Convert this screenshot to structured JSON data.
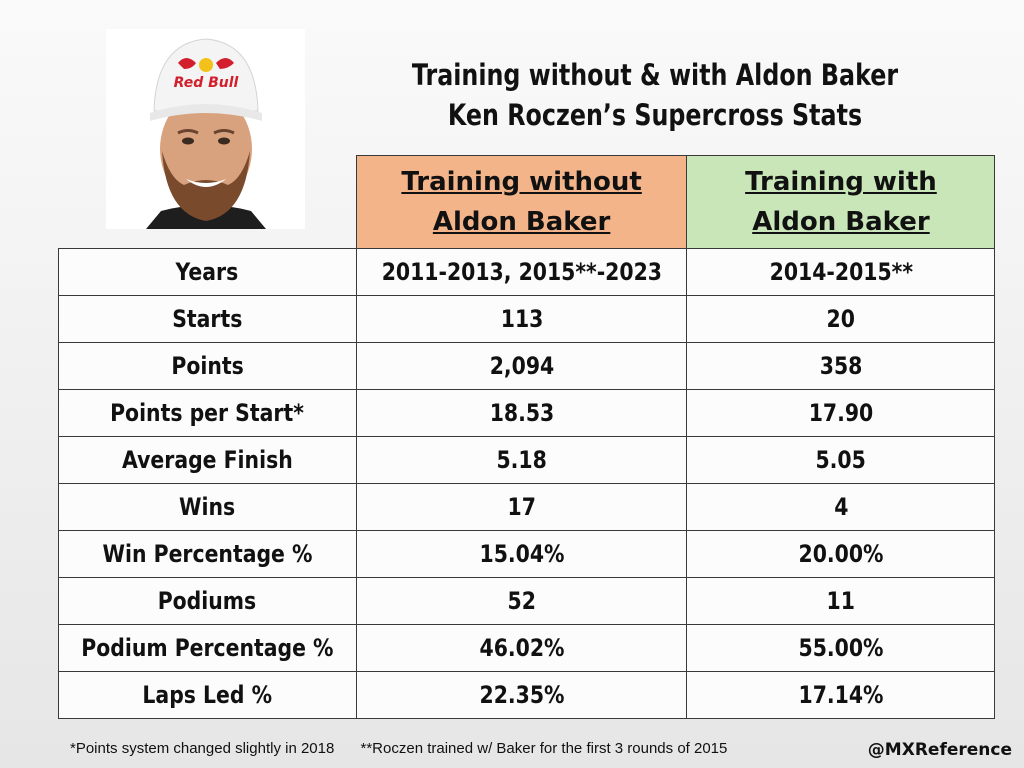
{
  "title": {
    "line1": "Training without & with Aldon Baker",
    "line2": "Ken Roczen’s Supercross Stats"
  },
  "photo": {
    "logo_text": "Red Bull"
  },
  "table": {
    "header_without": [
      "Training without",
      "Aldon Baker"
    ],
    "header_with": [
      "Training with",
      "Aldon Baker"
    ],
    "rows": [
      {
        "label": "Years",
        "without": "2011-2013, 2015**-2023",
        "with": "2014-2015**",
        "leader": "none"
      },
      {
        "label": "Starts",
        "without": "113",
        "with": "20",
        "leader": "without"
      },
      {
        "label": "Points",
        "without": "2,094",
        "with": "358",
        "leader": "without"
      },
      {
        "label": "Points per Start*",
        "without": "18.53",
        "with": "17.90",
        "leader": "without"
      },
      {
        "label": "Average Finish",
        "without": "5.18",
        "with": "5.05",
        "leader": "with"
      },
      {
        "label": "Wins",
        "without": "17",
        "with": "4",
        "leader": "without"
      },
      {
        "label": "Win Percentage %",
        "without": "15.04%",
        "with": "20.00%",
        "leader": "with"
      },
      {
        "label": "Podiums",
        "without": "52",
        "with": "11",
        "leader": "without"
      },
      {
        "label": "Podium Percentage %",
        "without": "46.02%",
        "with": "55.00%",
        "leader": "with"
      },
      {
        "label": "Laps Led %",
        "without": "22.35%",
        "with": "17.14%",
        "leader": "without"
      }
    ]
  },
  "footnotes": [
    "*Points system changed slightly in 2018",
    "**Roczen trained w/ Baker for the first 3 rounds of 2015"
  ],
  "handle": "@MXReference",
  "colors": {
    "header_without_bg": "#f3b48a",
    "header_with_bg": "#c9e6b8",
    "leader_green": "#21a04a"
  }
}
